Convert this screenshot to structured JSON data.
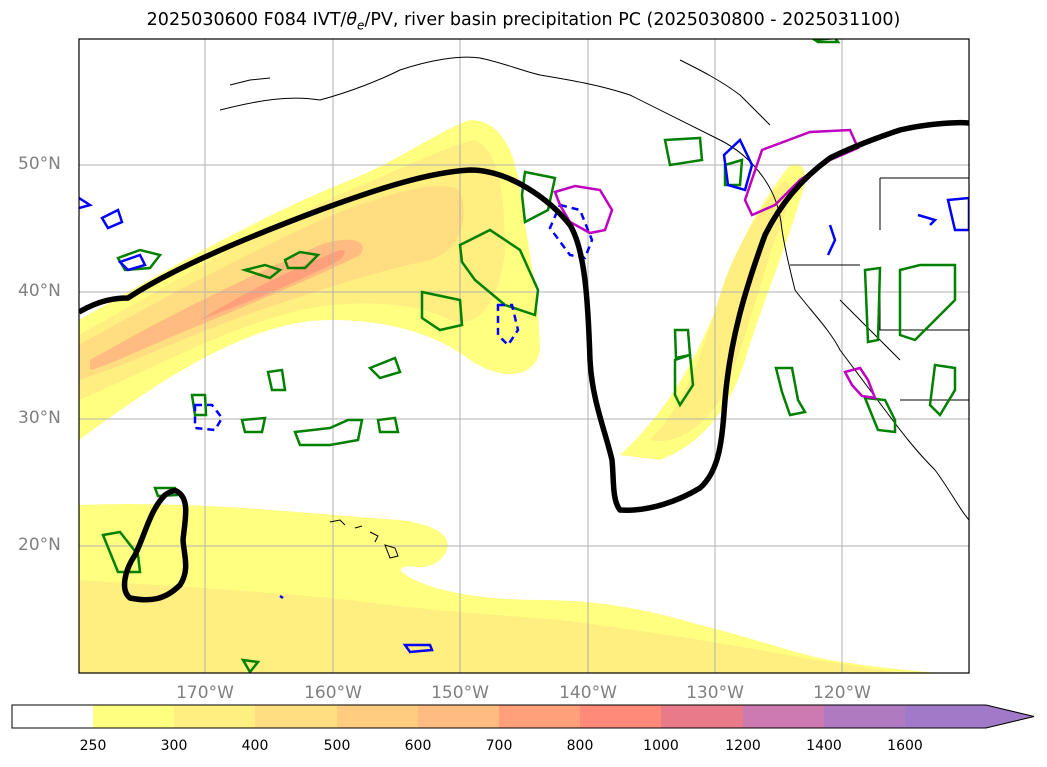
{
  "title_parts": {
    "prefix": "2025030600 F084 IVT/",
    "theta": "θ",
    "theta_sub": "e",
    "suffix": "/PV, river basin precipitation PC (2025030800 - 2025031100)"
  },
  "map": {
    "lat_labels": [
      "50°N",
      "40°N",
      "30°N",
      "20°N"
    ],
    "lon_labels": [
      "170°W",
      "160°W",
      "150°W",
      "140°W",
      "130°W",
      "120°W"
    ],
    "colors": {
      "frame": "#000000",
      "grid": "#b0b0b0",
      "coast": "#000000",
      "ivt_contour": "#000000",
      "green_contour": "#008000",
      "blue_contour": "#0000ff",
      "magenta_contour": "#c000c0"
    }
  },
  "colorbar": {
    "ticks": [
      "250",
      "300",
      "400",
      "500",
      "600",
      "700",
      "800",
      "1000",
      "1200",
      "1400",
      "1600"
    ],
    "colors": [
      "#ffffff",
      "#ffff80",
      "#ffee80",
      "#ffdd80",
      "#ffcc80",
      "#ffbb80",
      "#ffa07a",
      "#ff8a7a",
      "#e87a8a",
      "#cc7ab0",
      "#b07ac0",
      "#a07ac8"
    ],
    "extend": "max"
  }
}
